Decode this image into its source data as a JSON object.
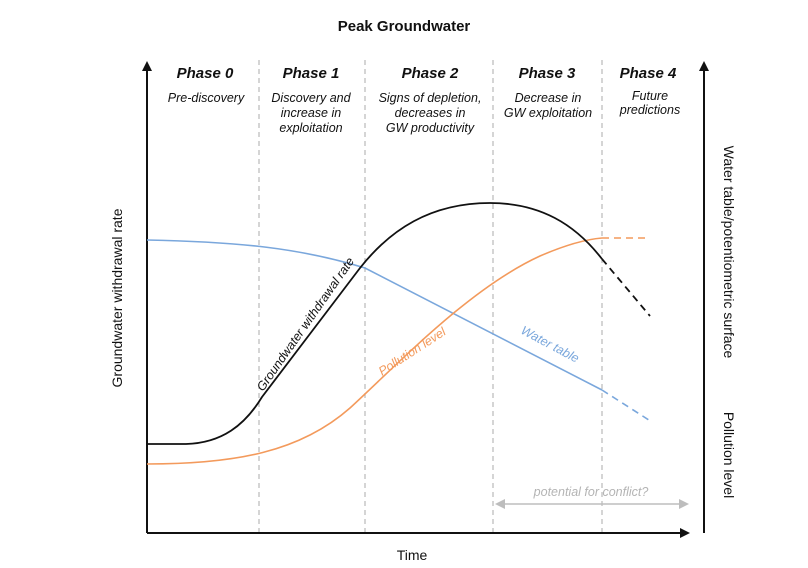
{
  "title": "Peak Groundwater",
  "x_axis_label": "Time",
  "y_axis_left_label": "Groundwater withdrawal rate",
  "y_axis_right_labels": {
    "water": "Water table/potentiometric surface",
    "pollution": "Pollution level"
  },
  "phases": [
    {
      "name": "Phase 0",
      "desc": [
        "Pre-discovery"
      ]
    },
    {
      "name": "Phase 1",
      "desc": [
        "Discovery and",
        "increase in",
        "exploitation"
      ]
    },
    {
      "name": "Phase 2",
      "desc": [
        "Signs of depletion,",
        "decreases in",
        "GW productivity"
      ]
    },
    {
      "name": "Phase 3",
      "desc": [
        "Decrease in",
        "GW exploitation"
      ]
    },
    {
      "name": "Phase 4",
      "desc": [
        "Future",
        "predictions"
      ]
    }
  ],
  "curve_labels": {
    "withdrawal": "Groundwater withdrawal rate",
    "pollution": "Pollution level",
    "water": "Water table"
  },
  "conflict_label": "potential for conflict?",
  "colors": {
    "withdrawal": "#111111",
    "water": "#7aa7dc",
    "pollution": "#f39a5c",
    "divider": "#b9b9b9",
    "conflict": "#bdbdbd"
  }
}
